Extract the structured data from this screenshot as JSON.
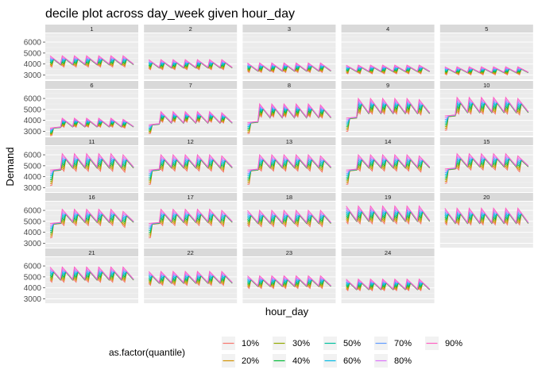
{
  "chart_data": {
    "type": "line",
    "title": "decile plot across day_week given hour_day",
    "xlabel": "hour_day",
    "ylabel": "Demand",
    "y_ticks": [
      3000,
      4000,
      5000,
      6000
    ],
    "ylim": [
      2600,
      6800
    ],
    "grid": true,
    "facet_layout": {
      "columns": 5,
      "rows": 5
    },
    "x_points_per_panel": 49,
    "legend": {
      "title": "as.factor(quantile)",
      "placement": "bottom",
      "entries": [
        "10%",
        "20%",
        "30%",
        "40%",
        "50%",
        "60%",
        "70%",
        "80%",
        "90%"
      ],
      "colors": [
        "#F8766D",
        "#D39200",
        "#93AA00",
        "#00BA38",
        "#00C19F",
        "#00B9E3",
        "#619CFF",
        "#DB72FB",
        "#FF61C3"
      ]
    },
    "panels": [
      {
        "label": "1",
        "sawtooth": true,
        "high": 4750,
        "low": 4000,
        "drift": 0,
        "spread": 900
      },
      {
        "label": "2",
        "sawtooth": true,
        "high": 4400,
        "low": 3700,
        "drift": 0,
        "spread": 800
      },
      {
        "label": "3",
        "sawtooth": true,
        "high": 4100,
        "low": 3400,
        "drift": 0,
        "spread": 750
      },
      {
        "label": "4",
        "sawtooth": true,
        "high": 3900,
        "low": 3350,
        "drift": 0,
        "spread": 700
      },
      {
        "label": "5",
        "sawtooth": true,
        "high": 3750,
        "low": 3250,
        "drift": 0,
        "spread": 650
      },
      {
        "label": "6",
        "sawtooth": false,
        "start": 3300,
        "jump_high": 4100,
        "high": 4200,
        "low": 3450,
        "drift": 0,
        "spread": 700
      },
      {
        "label": "7",
        "sawtooth": false,
        "start": 3600,
        "jump_high": 4700,
        "high": 4800,
        "low": 3800,
        "drift": 0,
        "spread": 800
      },
      {
        "label": "8",
        "sawtooth": false,
        "start": 3800,
        "jump_high": 5400,
        "high": 5500,
        "low": 4300,
        "drift": 0,
        "spread": 1000
      },
      {
        "label": "9",
        "sawtooth": false,
        "start": 4200,
        "jump_high": 5900,
        "high": 6000,
        "low": 4700,
        "drift": 0,
        "spread": 1200
      },
      {
        "label": "10",
        "sawtooth": false,
        "start": 4400,
        "jump_high": 6000,
        "high": 6100,
        "low": 4800,
        "drift": 0,
        "spread": 1300
      },
      {
        "label": "11",
        "sawtooth": false,
        "start": 4600,
        "jump_high": 6000,
        "high": 6100,
        "low": 4900,
        "drift": 0,
        "spread": 1400
      },
      {
        "label": "12",
        "sawtooth": false,
        "start": 4600,
        "jump_high": 5900,
        "high": 6000,
        "low": 4900,
        "drift": 0,
        "spread": 1300
      },
      {
        "label": "13",
        "sawtooth": false,
        "start": 4600,
        "jump_high": 5900,
        "high": 6000,
        "low": 4900,
        "drift": 0,
        "spread": 1300
      },
      {
        "label": "14",
        "sawtooth": false,
        "start": 4600,
        "jump_high": 5900,
        "high": 6000,
        "low": 4900,
        "drift": 0,
        "spread": 1300
      },
      {
        "label": "15",
        "sawtooth": false,
        "start": 4700,
        "jump_high": 5900,
        "high": 6100,
        "low": 5000,
        "drift": 0,
        "spread": 1300
      },
      {
        "label": "16",
        "sawtooth": false,
        "start": 4800,
        "jump_high": 5900,
        "high": 6100,
        "low": 5000,
        "drift": 0,
        "spread": 1300
      },
      {
        "label": "17",
        "sawtooth": false,
        "start": 4800,
        "jump_high": 6000,
        "high": 6100,
        "low": 5000,
        "drift": 0,
        "spread": 1300
      },
      {
        "label": "18",
        "sawtooth": true,
        "high": 6000,
        "low": 4900,
        "drift": 0,
        "spread": 1300
      },
      {
        "label": "19",
        "sawtooth": true,
        "high": 6400,
        "low": 5100,
        "drift": 0,
        "spread": 1400
      },
      {
        "label": "20",
        "sawtooth": true,
        "high": 6200,
        "low": 4900,
        "drift": 0,
        "spread": 1300
      },
      {
        "label": "21",
        "sawtooth": true,
        "high": 5900,
        "low": 4800,
        "drift": 0,
        "spread": 1200
      },
      {
        "label": "22",
        "sawtooth": true,
        "high": 5500,
        "low": 4500,
        "drift": 0,
        "spread": 1100
      },
      {
        "label": "23",
        "sawtooth": true,
        "high": 5100,
        "low": 4200,
        "drift": 0,
        "spread": 1000
      },
      {
        "label": "24",
        "sawtooth": true,
        "high": 4800,
        "low": 3900,
        "drift": 0,
        "spread": 900
      }
    ]
  }
}
